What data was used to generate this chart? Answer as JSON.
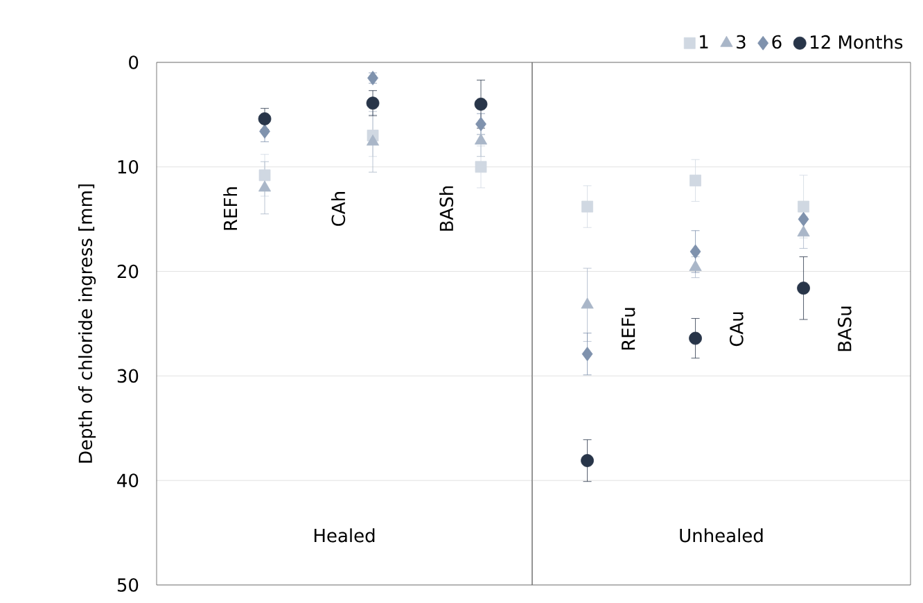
{
  "chart_data": [
    {
      "type": "scatter",
      "ylabel": "Depth of chloride ingress [mm]",
      "xlabel": "Healed",
      "categories": [
        "REFh",
        "CAh",
        "BASh"
      ],
      "series": [
        {
          "color": "#d0d8e2",
          "marker": "square",
          "values": [
            10.8,
            7.0,
            10.0
          ],
          "errors": [
            2,
            2,
            2
          ]
        },
        {
          "color": "#a9b6c8",
          "marker": "triangle",
          "values": [
            12.0,
            7.6,
            7.5
          ],
          "errors": [
            2.5,
            2.9,
            1.5
          ]
        },
        {
          "color": "#7f92ad",
          "marker": "diamond",
          "values": [
            6.6,
            1.5,
            5.9
          ],
          "errors": [
            1,
            0.5,
            1
          ]
        },
        {
          "color": "#283549",
          "marker": "circle",
          "values": [
            5.4,
            3.9,
            4.0
          ],
          "errors": [
            1,
            1.2,
            2.3
          ]
        }
      ],
      "ylim": [
        50,
        0
      ],
      "yticks": [
        0,
        10,
        20,
        30,
        40,
        50
      ],
      "grid": "y"
    },
    {
      "type": "scatter",
      "xlabel": "Unhealed",
      "categories": [
        "REFu",
        "CAu",
        "BASu"
      ],
      "series": [
        {
          "name": "1",
          "color": "#d0d8e2",
          "marker": "square",
          "values": [
            13.8,
            11.3,
            13.8
          ],
          "errors": [
            2,
            2,
            3
          ]
        },
        {
          "name": "3",
          "color": "#a9b6c8",
          "marker": "triangle",
          "values": [
            23.2,
            19.6,
            16.3
          ],
          "errors": [
            3.5,
            1,
            1.5
          ]
        },
        {
          "name": "6",
          "color": "#7f92ad",
          "marker": "diamond",
          "values": [
            27.9,
            18.1,
            15.0
          ],
          "errors": [
            2,
            2,
            1.5
          ]
        },
        {
          "name": "12 Months",
          "color": "#283549",
          "marker": "circle",
          "values": [
            38.1,
            26.4,
            21.6
          ],
          "errors": [
            2,
            1.9,
            3
          ]
        }
      ],
      "ylim": [
        50,
        0
      ],
      "grid": "y",
      "legend": "top right",
      "tick_labels": "x"
    }
  ]
}
